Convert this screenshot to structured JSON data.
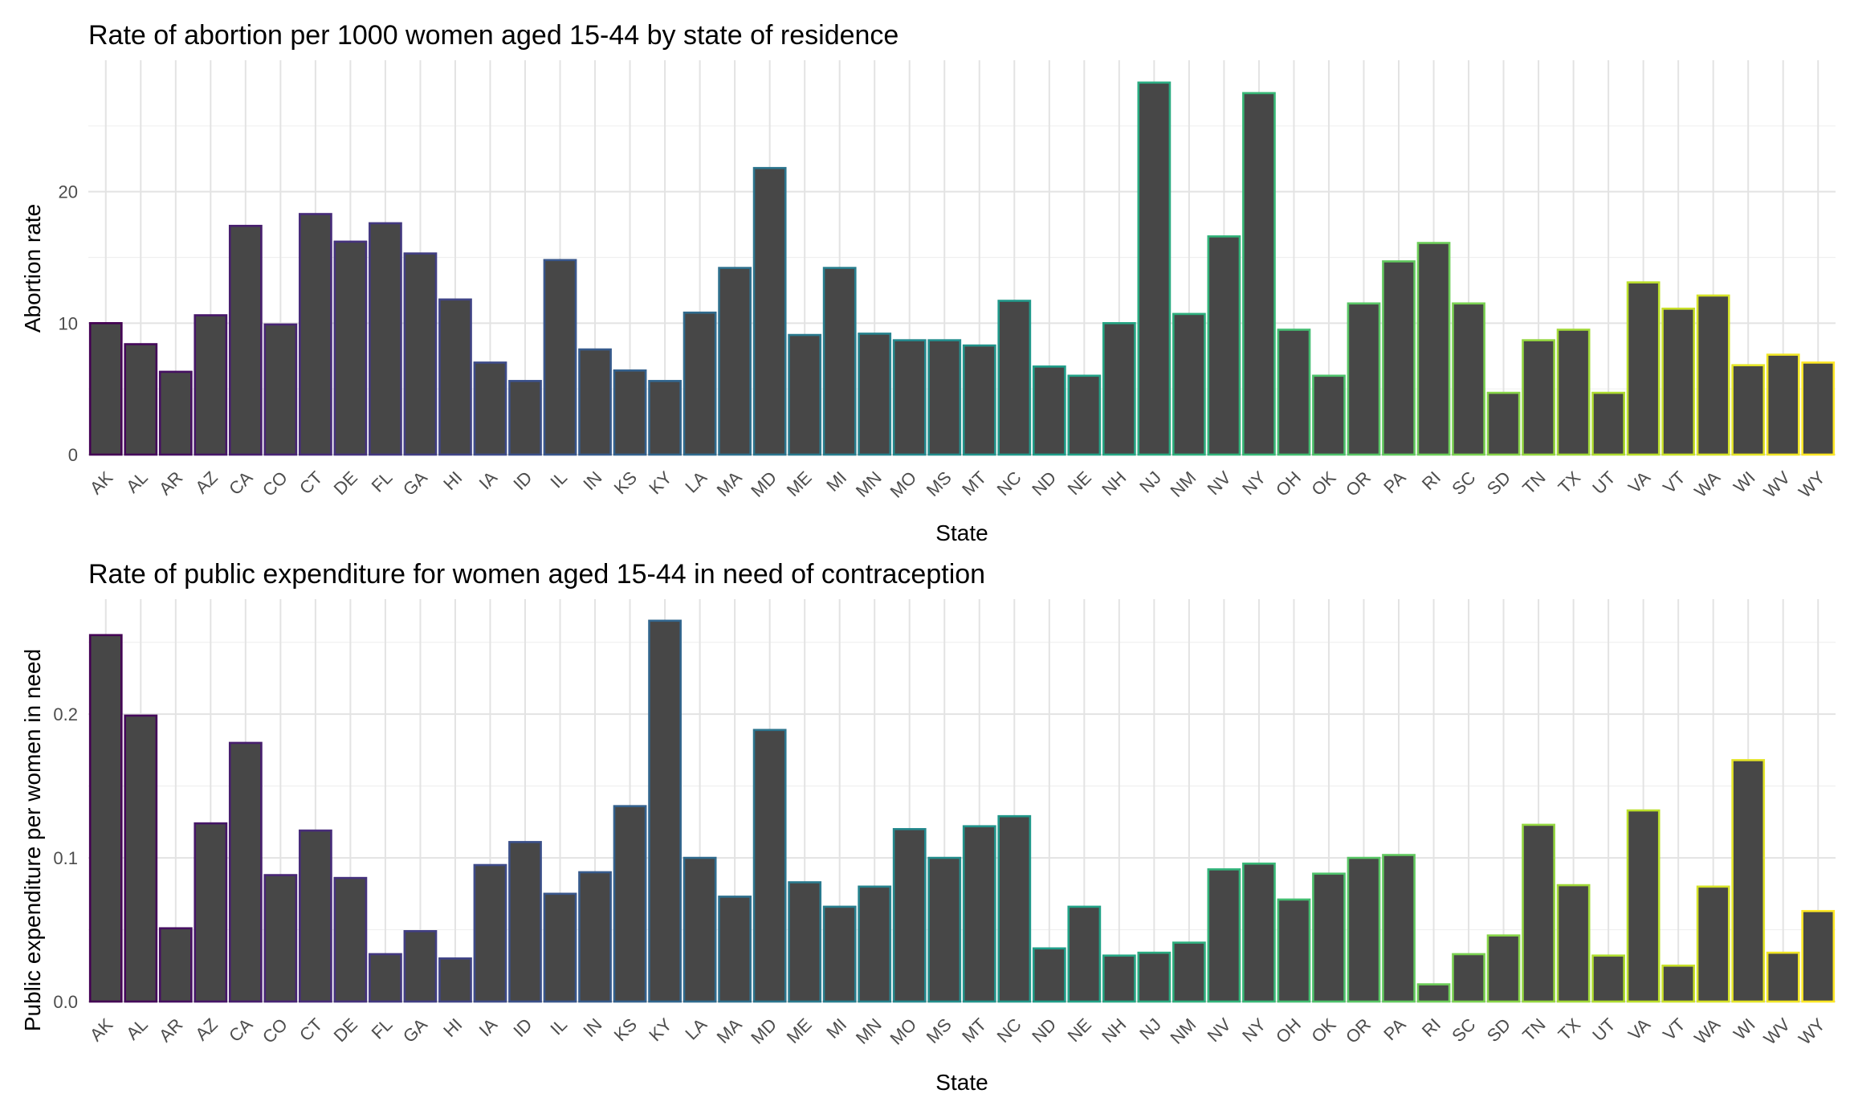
{
  "chart_data": [
    {
      "type": "bar",
      "title": "Rate of abortion per 1000 women aged 15-44 by state of residence",
      "xlabel": "State",
      "ylabel": "Abortion rate",
      "ylim": [
        0,
        30
      ],
      "yticks": [
        0,
        10,
        20
      ],
      "grid": true,
      "fill_color": "#474747",
      "categories": [
        "AK",
        "AL",
        "AR",
        "AZ",
        "CA",
        "CO",
        "CT",
        "DE",
        "FL",
        "GA",
        "HI",
        "IA",
        "ID",
        "IL",
        "IN",
        "KS",
        "KY",
        "LA",
        "MA",
        "MD",
        "ME",
        "MI",
        "MN",
        "MO",
        "MS",
        "MT",
        "NC",
        "ND",
        "NE",
        "NH",
        "NJ",
        "NM",
        "NV",
        "NY",
        "OH",
        "OK",
        "OR",
        "PA",
        "RI",
        "SC",
        "SD",
        "TN",
        "TX",
        "UT",
        "VA",
        "VT",
        "WA",
        "WI",
        "WV",
        "WY"
      ],
      "values": [
        10.0,
        8.4,
        6.3,
        10.6,
        17.4,
        9.9,
        18.3,
        16.2,
        17.6,
        15.3,
        11.8,
        7.0,
        5.6,
        14.8,
        8.0,
        6.4,
        5.6,
        10.8,
        14.2,
        21.8,
        9.1,
        14.2,
        9.2,
        8.7,
        8.7,
        8.3,
        11.7,
        6.7,
        6.0,
        10.0,
        28.3,
        10.7,
        16.6,
        27.5,
        9.5,
        6.0,
        11.5,
        14.7,
        16.1,
        11.5,
        4.7,
        8.7,
        9.5,
        4.7,
        13.1,
        11.1,
        12.1,
        6.8,
        7.6,
        7.0
      ]
    },
    {
      "type": "bar",
      "title": "Rate of public expenditure for women aged 15-44 in need of contraception",
      "xlabel": "State",
      "ylabel": "Public expenditure per women in need",
      "ylim": [
        0,
        0.28
      ],
      "yticks": [
        "0.0",
        "0.1",
        "0.2"
      ],
      "grid": true,
      "fill_color": "#474747",
      "categories": [
        "AK",
        "AL",
        "AR",
        "AZ",
        "CA",
        "CO",
        "CT",
        "DE",
        "FL",
        "GA",
        "HI",
        "IA",
        "ID",
        "IL",
        "IN",
        "KS",
        "KY",
        "LA",
        "MA",
        "MD",
        "ME",
        "MI",
        "MN",
        "MO",
        "MS",
        "MT",
        "NC",
        "ND",
        "NE",
        "NH",
        "NJ",
        "NM",
        "NV",
        "NY",
        "OH",
        "OK",
        "OR",
        "PA",
        "RI",
        "SC",
        "SD",
        "TN",
        "TX",
        "UT",
        "VA",
        "VT",
        "WA",
        "WI",
        "WV",
        "WY"
      ],
      "values": [
        0.255,
        0.199,
        0.051,
        0.124,
        0.18,
        0.088,
        0.119,
        0.086,
        0.033,
        0.049,
        0.03,
        0.095,
        0.111,
        0.075,
        0.09,
        0.136,
        0.265,
        0.1,
        0.073,
        0.189,
        0.083,
        0.066,
        0.08,
        0.12,
        0.1,
        0.122,
        0.129,
        0.037,
        0.066,
        0.032,
        0.034,
        0.041,
        0.092,
        0.096,
        0.071,
        0.089,
        0.1,
        0.102,
        0.012,
        0.033,
        0.046,
        0.123,
        0.081,
        0.032,
        0.133,
        0.025,
        0.08,
        0.168,
        0.034,
        0.063
      ]
    }
  ]
}
